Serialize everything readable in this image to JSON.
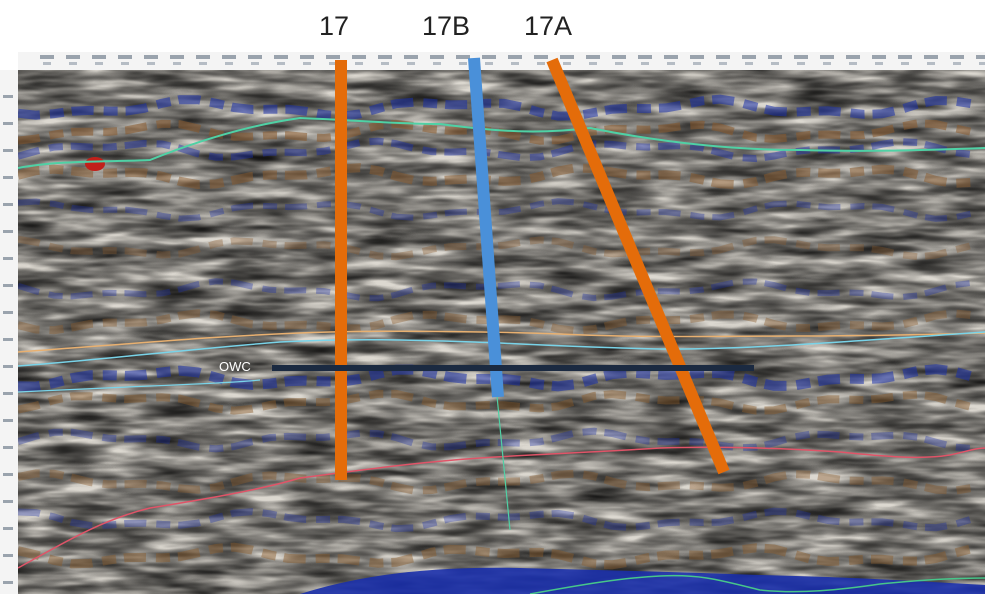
{
  "wells": [
    {
      "name": "17",
      "color": "#e46c0a"
    },
    {
      "name": "17B",
      "color": "#4a90d9"
    },
    {
      "name": "17A",
      "color": "#e46c0a"
    }
  ],
  "contact": {
    "label": "OWC",
    "color": "#1b2a41"
  },
  "horizon_colors": {
    "top": "#4fd1a5",
    "middle_orange": "#e8b070",
    "middle_cyan": "#79d3e8",
    "lower_red": "#e05468",
    "bottom_green": "#47c68a"
  },
  "seismic_colors": {
    "background": "#dcd8d0",
    "peak": "#8a5a2b",
    "trough": "#1a2faa",
    "neutral": "#f2f0ec",
    "high": "#c1201a"
  }
}
